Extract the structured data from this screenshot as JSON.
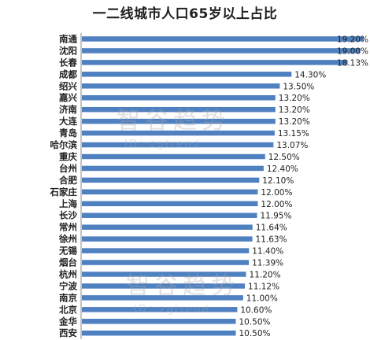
{
  "chart_data": {
    "type": "bar",
    "orientation": "horizontal",
    "title": "一二线城市人口65岁以上占比",
    "xlabel": "",
    "ylabel": "",
    "xlim": [
      0,
      19.6
    ],
    "grid": false,
    "legend": "none",
    "bar_color": "#4f80c0",
    "categories": [
      "南通",
      "沈阳",
      "长春",
      "成都",
      "绍兴",
      "嘉兴",
      "济南",
      "大连",
      "青岛",
      "哈尔滨",
      "重庆",
      "台州",
      "合肥",
      "石家庄",
      "上海",
      "长沙",
      "常州",
      "徐州",
      "无锡",
      "烟台",
      "杭州",
      "宁波",
      "南京",
      "北京",
      "金华",
      "西安"
    ],
    "values": [
      19.2,
      19.0,
      18.13,
      14.3,
      13.5,
      13.2,
      13.2,
      13.2,
      13.15,
      13.07,
      12.5,
      12.4,
      12.1,
      12.0,
      12.0,
      11.95,
      11.64,
      11.63,
      11.4,
      11.39,
      11.2,
      11.12,
      11.0,
      10.6,
      10.5,
      10.5
    ],
    "labels": [
      "19.20%",
      "19.00%",
      "18.13%",
      "14.30%",
      "13.50%",
      "13.20%",
      "13.20%",
      "13.20%",
      "13.15%",
      "13.07%",
      "12.50%",
      "12.40%",
      "12.10%",
      "12.00%",
      "12.00%",
      "11.95%",
      "11.64%",
      "11.63%",
      "11.40%",
      "11.39%",
      "11.20%",
      "11.12%",
      "11.00%",
      "10.60%",
      "10.50%",
      "10.50%"
    ]
  },
  "watermark": {
    "text": "智谷趋势",
    "id_text": "ID：zgtrend"
  }
}
